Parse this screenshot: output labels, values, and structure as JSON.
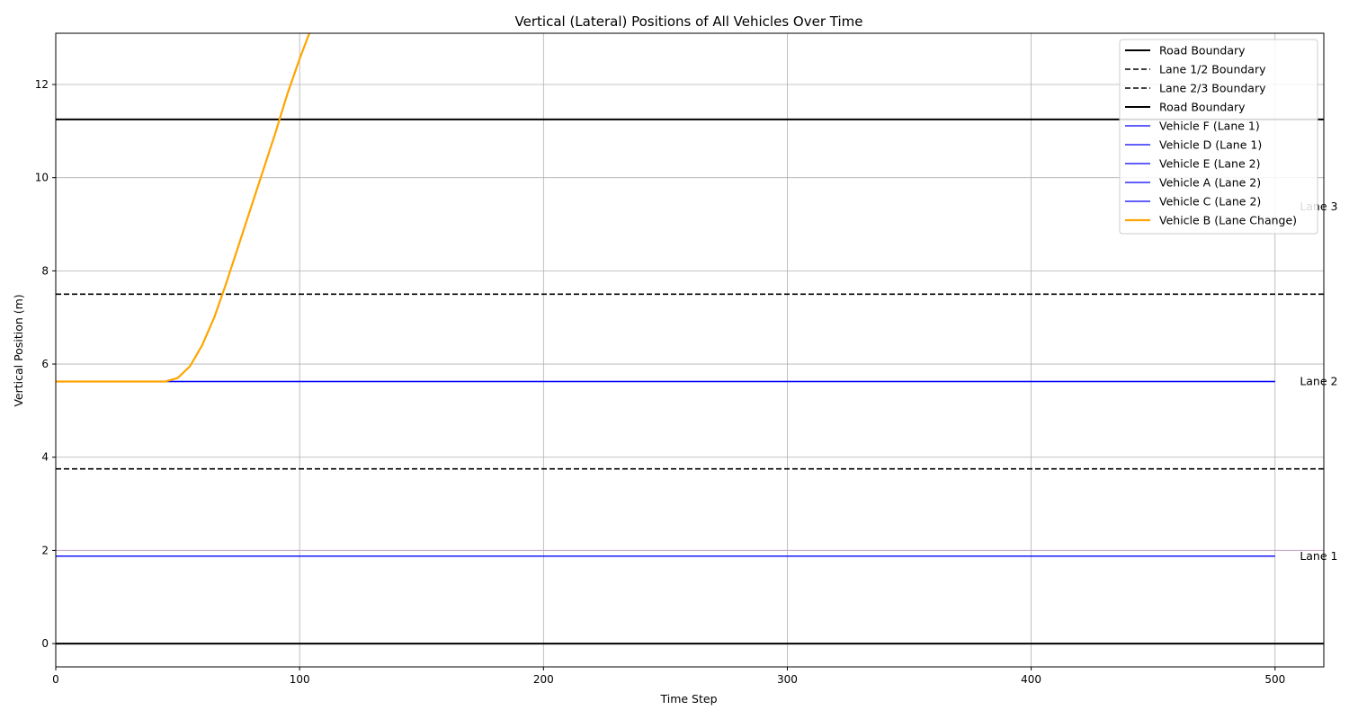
{
  "chart_data": {
    "type": "line",
    "title": "Vertical (Lateral) Positions of All Vehicles Over Time",
    "xlabel": "Time Step",
    "ylabel": "Vertical Position (m)",
    "xlim": [
      0,
      520
    ],
    "ylim": [
      -0.5,
      13.1
    ],
    "xticks": [
      0,
      100,
      200,
      300,
      400,
      500
    ],
    "yticks": [
      0,
      2,
      4,
      6,
      8,
      10,
      12
    ],
    "grid": true,
    "legend_position": "top-right",
    "boundaries": [
      {
        "name": "Road Boundary",
        "y": 11.25,
        "style": "solid",
        "color": "#000000"
      },
      {
        "name": "Lane 1/2 Boundary",
        "y": 3.75,
        "style": "dashed",
        "color": "#000000"
      },
      {
        "name": "Lane 2/3 Boundary",
        "y": 7.5,
        "style": "dashed",
        "color": "#000000"
      },
      {
        "name": "Road Boundary",
        "y": 0,
        "style": "solid",
        "color": "#000000"
      }
    ],
    "reference_line": {
      "y": 2.0,
      "color": "#c9a6c9"
    },
    "series": [
      {
        "name": "Vehicle F (Lane 1)",
        "color": "#0000ff",
        "x": [
          0,
          500
        ],
        "y": [
          1.875,
          1.875
        ]
      },
      {
        "name": "Vehicle D (Lane 1)",
        "color": "#0000ff",
        "x": [
          0,
          500
        ],
        "y": [
          1.875,
          1.875
        ]
      },
      {
        "name": "Vehicle E (Lane 2)",
        "color": "#0000ff",
        "x": [
          0,
          500
        ],
        "y": [
          5.625,
          5.625
        ]
      },
      {
        "name": "Vehicle A (Lane 2)",
        "color": "#0000ff",
        "x": [
          0,
          500
        ],
        "y": [
          5.625,
          5.625
        ]
      },
      {
        "name": "Vehicle C (Lane 2)",
        "color": "#0000ff",
        "x": [
          0,
          500
        ],
        "y": [
          5.625,
          5.625
        ]
      },
      {
        "name": "Vehicle B (Lane Change)",
        "color": "#ffa500",
        "x": [
          0,
          45,
          50,
          55,
          60,
          65,
          70,
          75,
          80,
          85,
          90,
          95,
          100,
          104
        ],
        "y": [
          5.625,
          5.625,
          5.7,
          5.95,
          6.4,
          7.0,
          7.75,
          8.55,
          9.35,
          10.15,
          10.95,
          11.8,
          12.55,
          13.1
        ]
      }
    ],
    "lane_labels": [
      {
        "text": "Lane 1",
        "x": 505,
        "y": 1.875
      },
      {
        "text": "Lane 2",
        "x": 505,
        "y": 5.625
      },
      {
        "text": "Lane 3",
        "x": 505,
        "y": 9.375
      }
    ]
  }
}
